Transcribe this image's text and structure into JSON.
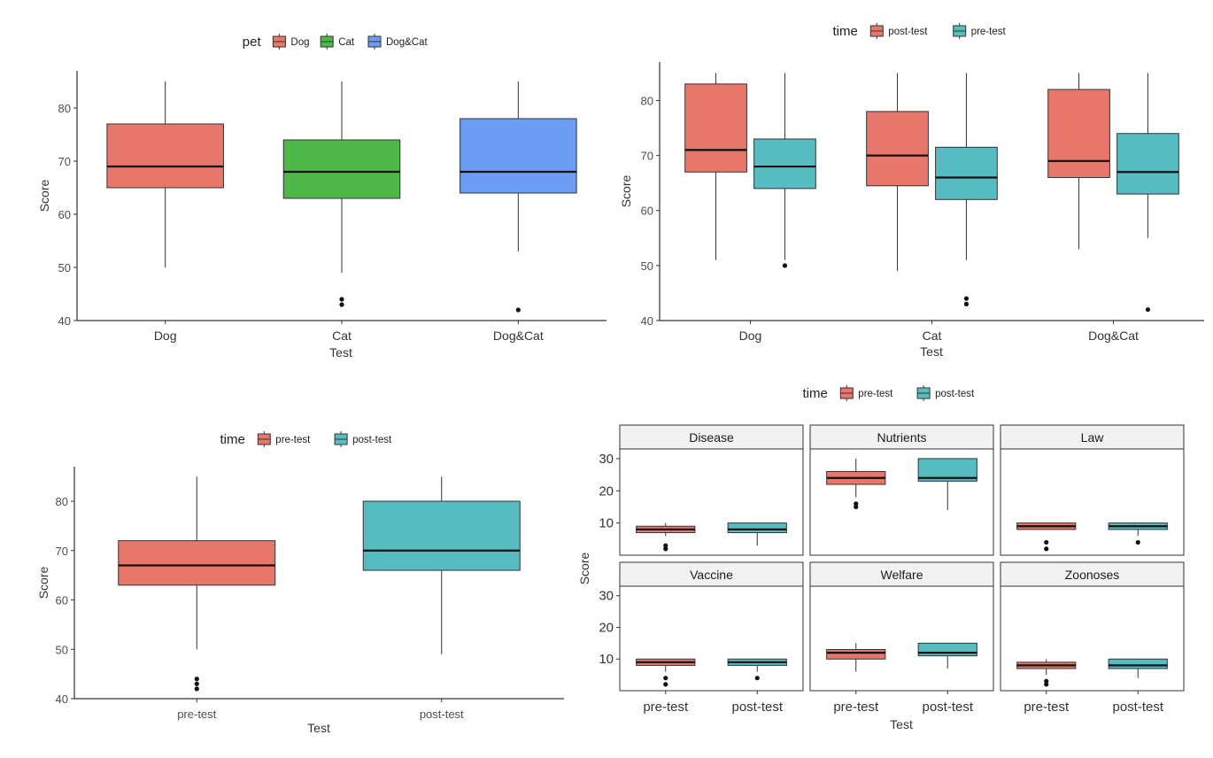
{
  "colors": {
    "dog": "#E8776B",
    "cat": "#4DB848",
    "dogcat": "#6D9CF5",
    "red": "#E8776B",
    "teal": "#56BCC2",
    "strip": "#F2F2F2",
    "axis": "#333333"
  },
  "chart_data": [
    {
      "type": "box",
      "legend": {
        "title": "pet",
        "entries": [
          "Dog",
          "Cat",
          "Dog&Cat"
        ],
        "placement": "top"
      },
      "xlabel": "Test",
      "ylabel": "Score",
      "ylim": [
        40,
        87
      ],
      "yticks": [
        40,
        50,
        60,
        70,
        80
      ],
      "categories": [
        "Dog",
        "Cat",
        "Dog&Cat"
      ],
      "boxes": [
        {
          "category": "Dog",
          "group": "Dog",
          "min": 50,
          "q1": 65,
          "median": 69,
          "q3": 77,
          "max": 85,
          "outliers": []
        },
        {
          "category": "Cat",
          "group": "Cat",
          "min": 49,
          "q1": 63,
          "median": 68,
          "q3": 74,
          "max": 85,
          "outliers": [
            43,
            44
          ]
        },
        {
          "category": "Dog&Cat",
          "group": "Dog&Cat",
          "min": 53,
          "q1": 64,
          "median": 68,
          "q3": 78,
          "max": 85,
          "outliers": [
            42
          ]
        }
      ]
    },
    {
      "type": "box",
      "legend": {
        "title": "time",
        "entries": [
          "post-test",
          "pre-test"
        ],
        "placement": "top"
      },
      "xlabel": "Test",
      "ylabel": "Score",
      "ylim": [
        40,
        87
      ],
      "yticks": [
        40,
        50,
        60,
        70,
        80
      ],
      "categories": [
        "Dog",
        "Cat",
        "Dog&Cat"
      ],
      "boxes": [
        {
          "category": "Dog",
          "group": "post-test",
          "min": 51,
          "q1": 67,
          "median": 71,
          "q3": 83,
          "max": 85,
          "outliers": []
        },
        {
          "category": "Dog",
          "group": "pre-test",
          "min": 51,
          "q1": 64,
          "median": 68,
          "q3": 73,
          "max": 85,
          "outliers": [
            50
          ]
        },
        {
          "category": "Cat",
          "group": "post-test",
          "min": 49,
          "q1": 64.5,
          "median": 70,
          "q3": 78,
          "max": 85,
          "outliers": []
        },
        {
          "category": "Cat",
          "group": "pre-test",
          "min": 51,
          "q1": 62,
          "median": 66,
          "q3": 71.5,
          "max": 85,
          "outliers": [
            43,
            44
          ]
        },
        {
          "category": "Dog&Cat",
          "group": "post-test",
          "min": 53,
          "q1": 66,
          "median": 69,
          "q3": 82,
          "max": 85,
          "outliers": []
        },
        {
          "category": "Dog&Cat",
          "group": "pre-test",
          "min": 55,
          "q1": 63,
          "median": 67,
          "q3": 74,
          "max": 85,
          "outliers": [
            42
          ]
        }
      ]
    },
    {
      "type": "box",
      "legend": {
        "title": "time",
        "entries": [
          "pre-test",
          "post-test"
        ],
        "placement": "top"
      },
      "xlabel": "Test",
      "ylabel": "Score",
      "ylim": [
        40,
        87
      ],
      "yticks": [
        40,
        50,
        60,
        70,
        80
      ],
      "categories": [
        "pre-test",
        "post-test"
      ],
      "boxes": [
        {
          "category": "pre-test",
          "group": "pre-test",
          "min": 50,
          "q1": 63,
          "median": 67,
          "q3": 72,
          "max": 85,
          "outliers": [
            42,
            43,
            44
          ]
        },
        {
          "category": "post-test",
          "group": "post-test",
          "min": 49,
          "q1": 66,
          "median": 70,
          "q3": 80,
          "max": 85,
          "outliers": []
        }
      ]
    },
    {
      "type": "box",
      "faceted": true,
      "legend": {
        "title": "time",
        "entries": [
          "pre-test",
          "post-test"
        ],
        "placement": "top"
      },
      "xlabel": "Test",
      "ylabel": "Score",
      "ylim": [
        0,
        33
      ],
      "yticks": [
        10,
        20,
        30
      ],
      "categories": [
        "pre-test",
        "post-test"
      ],
      "facets": [
        {
          "name": "Disease",
          "boxes": [
            {
              "category": "pre-test",
              "min": 6,
              "q1": 7,
              "median": 8,
              "q3": 9,
              "max": 10,
              "outliers": [
                2,
                3
              ]
            },
            {
              "category": "post-test",
              "min": 3,
              "q1": 7,
              "median": 8,
              "q3": 10,
              "max": 10,
              "outliers": []
            }
          ]
        },
        {
          "name": "Nutrients",
          "boxes": [
            {
              "category": "pre-test",
              "min": 18,
              "q1": 22,
              "median": 24,
              "q3": 26,
              "max": 30,
              "outliers": [
                15,
                16
              ]
            },
            {
              "category": "post-test",
              "min": 14,
              "q1": 23,
              "median": 24,
              "q3": 30,
              "max": 30,
              "outliers": []
            }
          ]
        },
        {
          "name": "Law",
          "boxes": [
            {
              "category": "pre-test",
              "min": 8,
              "q1": 8,
              "median": 9,
              "q3": 10,
              "max": 10,
              "outliers": [
                2,
                4
              ]
            },
            {
              "category": "post-test",
              "min": 6,
              "q1": 8,
              "median": 9,
              "q3": 10,
              "max": 10,
              "outliers": [
                4
              ]
            }
          ]
        },
        {
          "name": "Vaccine",
          "boxes": [
            {
              "category": "pre-test",
              "min": 6,
              "q1": 8,
              "median": 9,
              "q3": 10,
              "max": 10,
              "outliers": [
                2,
                4
              ]
            },
            {
              "category": "post-test",
              "min": 6,
              "q1": 8,
              "median": 9,
              "q3": 10,
              "max": 10,
              "outliers": [
                4
              ]
            }
          ]
        },
        {
          "name": "Welfare",
          "boxes": [
            {
              "category": "pre-test",
              "min": 6,
              "q1": 10,
              "median": 12,
              "q3": 13,
              "max": 15,
              "outliers": []
            },
            {
              "category": "post-test",
              "min": 7,
              "q1": 11,
              "median": 12,
              "q3": 15,
              "max": 15,
              "outliers": []
            }
          ]
        },
        {
          "name": "Zoonoses",
          "boxes": [
            {
              "category": "pre-test",
              "min": 5,
              "q1": 7,
              "median": 8,
              "q3": 9,
              "max": 10,
              "outliers": [
                2,
                3
              ]
            },
            {
              "category": "post-test",
              "min": 4,
              "q1": 7,
              "median": 8,
              "q3": 10,
              "max": 10,
              "outliers": []
            }
          ]
        }
      ]
    }
  ]
}
